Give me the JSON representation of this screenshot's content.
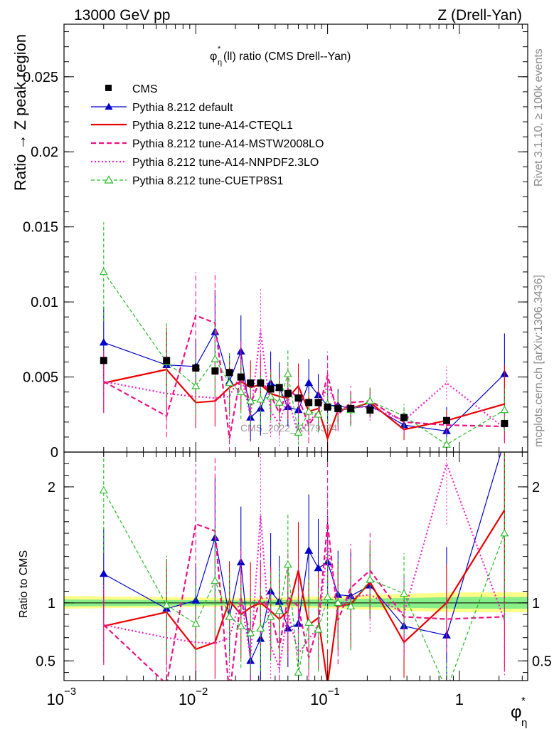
{
  "header": {
    "left": "13000 GeV pp",
    "right": "Z (Drell-Yan)"
  },
  "side_labels": {
    "rivet": "Rivet 3.1.10, ≥ 100k events",
    "mcplots": "mcplots.cern.ch [arXiv:1306.3436]"
  },
  "watermark": "CMS_2022_I2079374",
  "plot_title": "φ*η(ll) ratio (CMS Drell--Yan)",
  "plot_title_parts": {
    "phi": "φ",
    "sup": "*",
    "sub": "η",
    "rest": "(ll) ratio (CMS Drell--Yan)"
  },
  "axes": {
    "main_ylabel": "Ratio → Z peak region",
    "ratio_ylabel": "Ratio to CMS",
    "xlabel_main": "φ",
    "xlabel_sup": "*",
    "xlabel_sub": "η"
  },
  "legend": [
    {
      "key": "cms",
      "label": "CMS"
    },
    {
      "key": "def",
      "label": "Pythia 8.212 default"
    },
    {
      "key": "cteq",
      "label": "Pythia 8.212 tune-A14-CTEQL1"
    },
    {
      "key": "mstw",
      "label": "Pythia 8.212 tune-A14-MSTW2008LO"
    },
    {
      "key": "nnpdf",
      "label": "Pythia 8.212 tune-A14-NNPDF2.3LO"
    },
    {
      "key": "cuetp",
      "label": "Pythia 8.212 tune-CUETP8S1"
    }
  ],
  "chart_data": {
    "type": "scatter",
    "xscale": "log",
    "xlim": [
      0.001,
      3.3
    ],
    "main": {
      "ylim": [
        0,
        0.0285
      ],
      "yticks": [
        0,
        0.005,
        0.01,
        0.015,
        0.02,
        0.025
      ],
      "yticklabels": [
        "0",
        "0.005",
        "0.01",
        "0.015",
        "0.02",
        "0.025"
      ]
    },
    "ratio": {
      "ylim": [
        0.33,
        2.3
      ],
      "yticks": [
        0.5,
        1,
        2
      ],
      "yticklabels": [
        "0.5",
        "1",
        "2"
      ]
    },
    "xticks": [
      0.001,
      0.01,
      0.1,
      1
    ],
    "xticklabels": [
      {
        "base": "10",
        "exp": "−3"
      },
      {
        "base": "10",
        "exp": "−2"
      },
      {
        "base": "10",
        "exp": "−1"
      },
      {
        "base": "1",
        "exp": ""
      }
    ],
    "x": [
      0.002,
      0.006,
      0.01,
      0.014,
      0.018,
      0.022,
      0.026,
      0.031,
      0.037,
      0.043,
      0.05,
      0.06,
      0.072,
      0.085,
      0.1,
      0.12,
      0.15,
      0.21,
      0.38,
      0.8,
      2.2
    ],
    "cms": {
      "values": [
        0.0061,
        0.0061,
        0.0056,
        0.0054,
        0.0053,
        0.005,
        0.0046,
        0.0046,
        0.0042,
        0.0043,
        0.0039,
        0.0036,
        0.0033,
        0.0033,
        0.003,
        0.0029,
        0.0029,
        0.0028,
        0.0023,
        0.0021,
        0.0019
      ],
      "errors": [
        0.0002,
        0.0002,
        0.0002,
        0.0002,
        0.0002,
        0.0002,
        0.0002,
        0.0002,
        0.0002,
        0.0002,
        0.0002,
        0.0002,
        0.0002,
        0.0002,
        0.0002,
        0.0002,
        0.0002,
        0.0002,
        0.0002,
        0.0002,
        0.0002
      ]
    },
    "ratio_bands": {
      "inner": [
        [
          0.001,
          0.97,
          1.03
        ],
        [
          0.03,
          0.98,
          1.02
        ],
        [
          0.9,
          0.95,
          1.05
        ],
        [
          3.3,
          0.95,
          1.05
        ]
      ],
      "outer": [
        [
          0.001,
          0.95,
          1.06
        ],
        [
          0.03,
          0.97,
          1.04
        ],
        [
          0.9,
          0.92,
          1.09
        ],
        [
          3.3,
          0.92,
          1.09
        ]
      ]
    },
    "series": [
      {
        "key": "def",
        "name": "Pythia 8.212 default",
        "color": "#0000cc",
        "dash": "",
        "width": 1.2,
        "marker": "triangle",
        "values": [
          0.0073,
          0.0058,
          0.0057,
          0.008,
          0.0047,
          0.0067,
          0.0023,
          0.0029,
          0.0046,
          0.0043,
          0.003,
          0.0028,
          0.0046,
          0.0038,
          0.0031,
          0.0031,
          0.0029,
          0.0031,
          0.0018,
          0.0014,
          0.0052
        ],
        "errors": [
          0.0024,
          0.0022,
          0.0018,
          0.0028,
          0.0018,
          0.0024,
          0.0016,
          0.0018,
          0.0021,
          0.0017,
          0.0013,
          0.0013,
          0.0016,
          0.0014,
          0.0012,
          0.0011,
          0.0011,
          0.0008,
          0.0006,
          0.0016,
          0.0027
        ],
        "ratio": [
          1.25,
          0.95,
          1.02,
          1.56,
          0.88,
          1.35,
          0.5,
          0.69,
          1.1,
          1.01,
          0.78,
          0.82,
          1.45,
          1.3,
          1.35,
          1.07,
          1.06,
          1.15,
          0.8,
          0.72,
          2.4
        ]
      },
      {
        "key": "cteq",
        "name": "Pythia 8.212 tune-A14-CTEQL1",
        "color": "#ee0000",
        "dash": "",
        "width": 2.2,
        "marker": "none",
        "values": [
          0.0046,
          0.0055,
          0.0033,
          0.0034,
          0.0043,
          0.0047,
          0.0043,
          0.0045,
          0.0039,
          0.0037,
          0.0036,
          0.0044,
          0.0027,
          0.0029,
          0.0009,
          0.0028,
          0.0029,
          0.0033,
          0.0015,
          0.0021,
          0.0032
        ],
        "errors": [
          0.0019,
          0.0028,
          0.0017,
          0.0017,
          0.0018,
          0.0019,
          0.0018,
          0.0017,
          0.0016,
          0.0015,
          0.0014,
          0.0015,
          0.0013,
          0.0013,
          0.0009,
          0.0011,
          0.0011,
          0.0009,
          0.0007,
          0.0007,
          0.0026
        ],
        "ratio": [
          0.8,
          0.92,
          0.6,
          0.66,
          1.02,
          0.9,
          0.96,
          1.0,
          0.93,
          0.86,
          0.93,
          1.28,
          0.81,
          0.87,
          0.3,
          0.97,
          0.99,
          1.18,
          0.66,
          1.0,
          1.8
        ]
      },
      {
        "key": "mstw",
        "name": "Pythia 8.212 tune-A14-MSTW2008LO",
        "color": "#ee1188",
        "dash": "7,4",
        "width": 2.2,
        "marker": "none",
        "values": [
          0.0047,
          0.0024,
          0.0091,
          0.0086,
          0.0009,
          0.0052,
          0.0032,
          0.0049,
          0.0038,
          0.0026,
          0.0042,
          0.0036,
          0.0018,
          0.0027,
          0.0051,
          0.0025,
          0.0033,
          0.0034,
          0.002,
          0.0018,
          0.0017
        ],
        "errors": [
          0.0021,
          0.0014,
          0.0029,
          0.0034,
          0.0009,
          0.0022,
          0.0018,
          0.0019,
          0.0017,
          0.0015,
          0.0016,
          0.0016,
          0.0012,
          0.0013,
          0.0016,
          0.0011,
          0.0011,
          0.0009,
          0.0008,
          0.0006,
          0.0009
        ],
        "ratio": [
          0.81,
          0.3,
          1.68,
          1.62,
          0.2,
          1.04,
          0.72,
          1.06,
          0.92,
          0.61,
          1.05,
          0.97,
          0.53,
          0.82,
          1.69,
          0.85,
          1.13,
          1.28,
          0.88,
          0.86,
          0.88
        ]
      },
      {
        "key": "nnpdf",
        "name": "Pythia 8.212 tune-A14-NNPDF2.3LO",
        "color": "#ee22cc",
        "dash": "2,3",
        "width": 2.2,
        "marker": "none",
        "values": [
          0.0047,
          0.0039,
          0.0037,
          0.0036,
          0.0037,
          0.0052,
          0.0024,
          0.0081,
          0.0027,
          0.0019,
          0.0037,
          0.0011,
          0.0021,
          0.0026,
          0.0045,
          0.0028,
          0.003,
          0.003,
          0.0021,
          0.0046,
          0.0016
        ],
        "errors": [
          0.0021,
          0.002,
          0.0019,
          0.0018,
          0.0018,
          0.0022,
          0.0017,
          0.0028,
          0.0017,
          0.0015,
          0.0015,
          0.0015,
          0.0012,
          0.0012,
          0.0015,
          0.0011,
          0.001,
          0.0009,
          0.0008,
          0.0011,
          0.0009
        ],
        "ratio": [
          0.81,
          0.7,
          0.66,
          0.65,
          0.7,
          1.05,
          0.53,
          1.75,
          0.63,
          0.44,
          0.92,
          0.56,
          0.69,
          0.79,
          1.49,
          0.96,
          1.05,
          1.07,
          0.91,
          2.2,
          0.85
        ]
      },
      {
        "key": "cuetp",
        "name": "Pythia 8.212 tune-CUETP8S1",
        "color": "#22bb22",
        "dash": "5,3",
        "width": 1.2,
        "marker": "triangle-open",
        "values": [
          0.012,
          0.006,
          0.0044,
          0.0062,
          0.0046,
          0.004,
          0.0034,
          0.0035,
          0.0037,
          0.0033,
          0.0052,
          0.0013,
          0.0027,
          0.0025,
          0.0032,
          0.0029,
          0.0028,
          0.0034,
          0.0024,
          0.0005,
          0.0028
        ],
        "errors": [
          0.0033,
          0.0026,
          0.0019,
          0.0025,
          0.002,
          0.0018,
          0.0016,
          0.0017,
          0.0016,
          0.0016,
          0.0017,
          0.0012,
          0.0013,
          0.0012,
          0.0012,
          0.0011,
          0.0011,
          0.0009,
          0.0008,
          0.0005,
          0.0014
        ],
        "ratio": [
          1.97,
          0.98,
          0.82,
          1.19,
          0.88,
          0.8,
          0.74,
          0.78,
          0.88,
          0.93,
          1.33,
          0.4,
          0.83,
          0.77,
          1.05,
          1.0,
          0.97,
          1.2,
          1.08,
          0.25,
          1.6
        ]
      }
    ]
  }
}
